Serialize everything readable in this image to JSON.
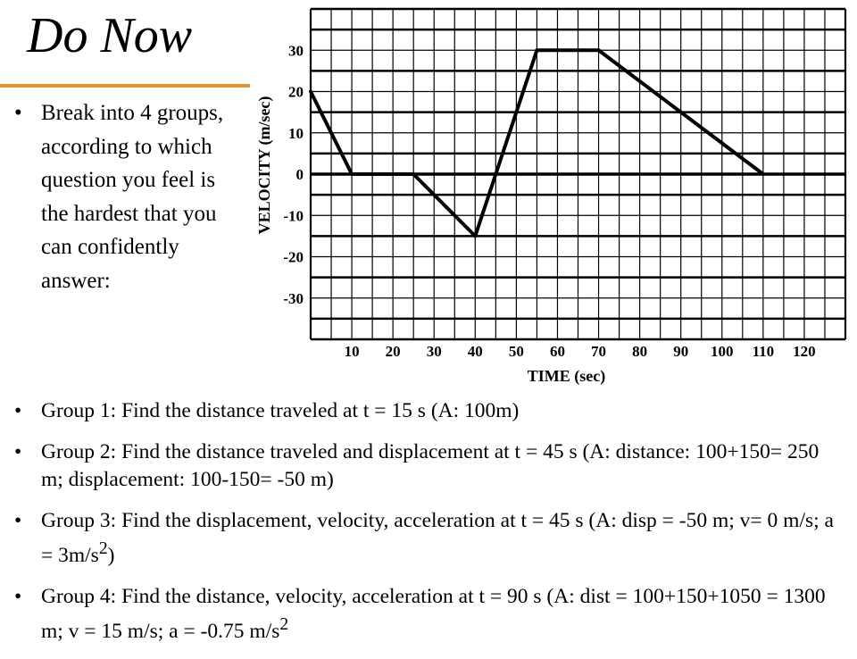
{
  "slide": {
    "title": "Do Now",
    "intro_bullet": "Break into 4 groups, according to which question you feel is the hardest that you can confidently answer:",
    "groups": [
      {
        "text": "Group 1: Find the distance traveled at t = 15 s (A: 100m)",
        "sup": "",
        "tail": ""
      },
      {
        "text": "Group 2: Find the distance traveled and displacement at t = 45 s (A: distance: 100+150= 250 m; displacement: 100-150= -50 m)",
        "sup": "",
        "tail": ""
      },
      {
        "text": "Group 3: Find the displacement, velocity, acceleration at t = 45 s (A: disp = -50 m; v= 0 m/s; a = 3m/s",
        "sup": "2",
        "tail": ")"
      },
      {
        "text": "Group 4: Find the distance, velocity, acceleration at t = 90 s (A: dist = 100+150+1050 = 1300 m; v = 15 m/s; a = -0.75 m/s",
        "sup": "2",
        "tail": ""
      }
    ],
    "bullet_char": "•"
  },
  "chart_data": {
    "type": "line",
    "title": "",
    "xlabel": "TIME (sec)",
    "ylabel": "VELOCITY (m/sec)",
    "xlim": [
      0,
      130
    ],
    "ylim": [
      -40,
      40
    ],
    "xticks": [
      10,
      20,
      30,
      40,
      50,
      60,
      70,
      80,
      90,
      100,
      110,
      120
    ],
    "yticks": [
      30,
      20,
      10,
      0,
      -10,
      -20,
      -30
    ],
    "grid": true,
    "series": [
      {
        "x": [
          0,
          10
        ],
        "y": [
          20,
          0
        ]
      },
      {
        "x": [
          10,
          25
        ],
        "y": [
          0,
          0
        ]
      },
      {
        "x": [
          25,
          40
        ],
        "y": [
          0,
          -15
        ]
      },
      {
        "x": [
          40,
          55
        ],
        "y": [
          -15,
          30
        ]
      },
      {
        "x": [
          55,
          70
        ],
        "y": [
          30,
          30
        ]
      },
      {
        "x": [
          70,
          110
        ],
        "y": [
          30,
          0
        ]
      }
    ],
    "colors": {
      "line": "#000000",
      "grid": "#000000"
    }
  }
}
